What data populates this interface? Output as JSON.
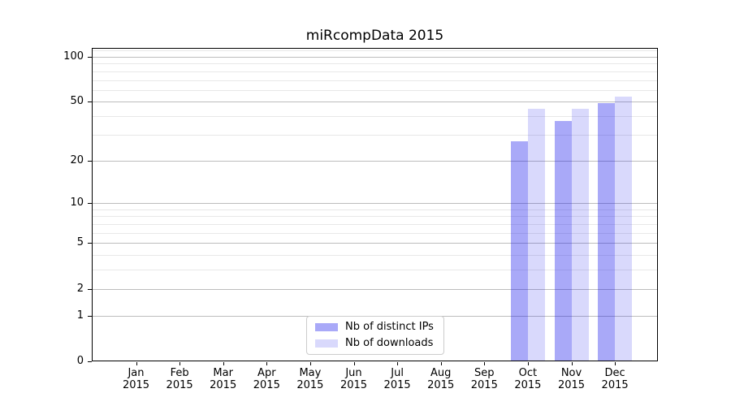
{
  "chart_data": {
    "type": "bar",
    "title": "miRcompData 2015",
    "x_axis": {
      "months": [
        "Jan",
        "Feb",
        "Mar",
        "Apr",
        "May",
        "Jun",
        "Jul",
        "Aug",
        "Sep",
        "Oct",
        "Nov",
        "Dec"
      ],
      "year": "2015"
    },
    "y_axis": {
      "scale": "log1p",
      "ticks": [
        0,
        1,
        2,
        5,
        10,
        20,
        50,
        100
      ],
      "minor_gridlines": [
        3,
        4,
        6,
        7,
        8,
        9,
        30,
        40,
        60,
        70,
        80,
        90,
        110
      ],
      "ylim": [
        0,
        114.6
      ],
      "grid": true
    },
    "series": [
      {
        "name": "Nb of distinct IPs",
        "color_hex": "#a9a9f8",
        "color_rgba": "rgba(10,10,235,0.35)",
        "values": [
          0,
          0,
          0,
          0,
          0,
          0,
          0,
          0,
          0,
          27,
          37,
          49
        ]
      },
      {
        "name": "Nb of downloads",
        "color_hex": "#d9d9fc",
        "color_rgba": "rgba(10,10,235,0.155)",
        "values": [
          0,
          0,
          0,
          0,
          0,
          0,
          0,
          0,
          0,
          45,
          45,
          54
        ]
      }
    ],
    "legend": {
      "position": "lower center"
    }
  }
}
